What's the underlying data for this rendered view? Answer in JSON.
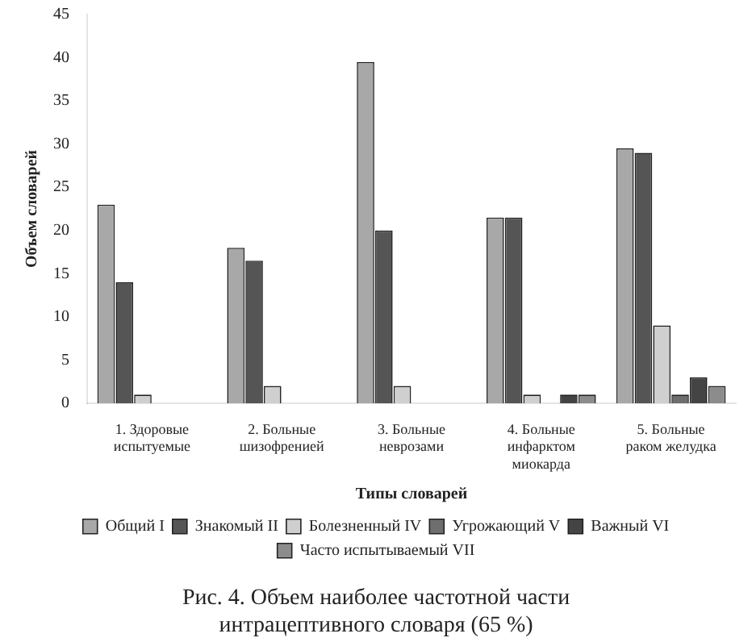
{
  "chart_data": {
    "type": "bar",
    "title": "Рис. 4. Объем наиболее частотной части интрацептивного словаря (65 %)",
    "xlabel": "Типы словарей",
    "ylabel": "Объем словарей",
    "categories": [
      "1. Здоровые испытуемые",
      "2. Больные шизофренией",
      "3. Больные неврозами",
      "4. Больные инфарктом миокарда",
      "5. Больные раком желудка"
    ],
    "series": [
      {
        "name": "Общий I",
        "color": "#a8a8a8",
        "values": [
          23,
          18,
          39.5,
          21.5,
          29.5
        ]
      },
      {
        "name": "Знакомый II",
        "color": "#555555",
        "values": [
          14,
          16.5,
          20,
          21.5,
          29
        ]
      },
      {
        "name": "Болезненный IV",
        "color": "#cfcfcf",
        "values": [
          1,
          2,
          2,
          1,
          9
        ]
      },
      {
        "name": "Угрожающий V",
        "color": "#6e6e6e",
        "values": [
          null,
          null,
          null,
          null,
          1
        ]
      },
      {
        "name": "Важный VI",
        "color": "#444444",
        "values": [
          null,
          null,
          null,
          1,
          3
        ]
      },
      {
        "name": "Часто испытываемый VII",
        "color": "#8c8c8c",
        "values": [
          null,
          null,
          null,
          1,
          2
        ]
      }
    ],
    "ylim": [
      0,
      45
    ],
    "yticks": [
      0,
      5,
      10,
      15,
      20,
      25,
      30,
      35,
      40,
      45
    ],
    "grid": false,
    "legend": "bottom"
  }
}
